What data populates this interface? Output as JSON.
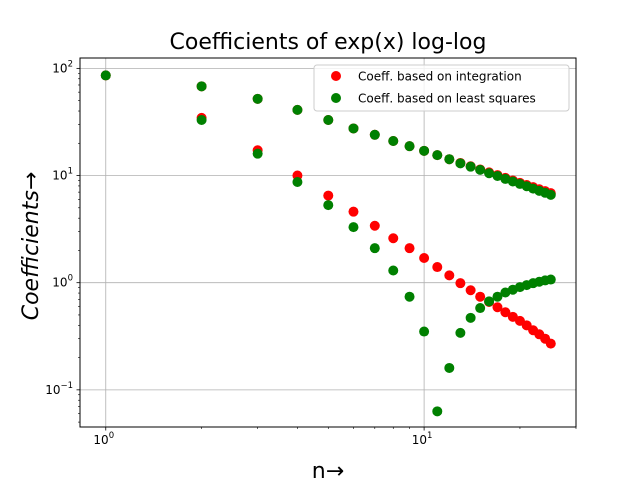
{
  "chart_data": {
    "type": "scatter",
    "title": "Coefficients of exp(x) log-log",
    "xlabel": "n→",
    "ylabel": "Coefficients→",
    "xscale": "log",
    "yscale": "log",
    "xlim": [
      0.83,
      30
    ],
    "ylim": [
      0.045,
      125
    ],
    "grid": true,
    "legend_position": "top-right",
    "x_ticks": [
      {
        "value": 1,
        "base": "10",
        "exp": "0"
      },
      {
        "value": 10,
        "base": "10",
        "exp": "1"
      }
    ],
    "y_ticks": [
      {
        "value": 0.1,
        "base": "10",
        "exp": "−1"
      },
      {
        "value": 1,
        "base": "10",
        "exp": "0"
      },
      {
        "value": 10,
        "base": "10",
        "exp": "1"
      },
      {
        "value": 100,
        "base": "10",
        "exp": "2"
      }
    ],
    "series": [
      {
        "name": "Coeff. based on integration",
        "color": "#ff0000",
        "points": [
          [
            1,
            86
          ],
          [
            2,
            34.5
          ],
          [
            3,
            17.2
          ],
          [
            4,
            10.0
          ],
          [
            5,
            6.5
          ],
          [
            6,
            4.6
          ],
          [
            7,
            3.4
          ],
          [
            8,
            2.6
          ],
          [
            9,
            2.1
          ],
          [
            10,
            1.7
          ],
          [
            11,
            1.4
          ],
          [
            12,
            1.17
          ],
          [
            13,
            0.99
          ],
          [
            14,
            0.85
          ],
          [
            15,
            0.74
          ],
          [
            16,
            0.66
          ],
          [
            17,
            0.59
          ],
          [
            18,
            0.53
          ],
          [
            19,
            0.48
          ],
          [
            20,
            0.44
          ],
          [
            21,
            0.4
          ],
          [
            22,
            0.36
          ],
          [
            23,
            0.33
          ],
          [
            24,
            0.3
          ],
          [
            25,
            0.27
          ],
          [
            2,
            68
          ],
          [
            3,
            52
          ],
          [
            4,
            41
          ],
          [
            5,
            33
          ],
          [
            6,
            27.5
          ],
          [
            7,
            24
          ],
          [
            8,
            21
          ],
          [
            9,
            18.8
          ],
          [
            10,
            17.0
          ],
          [
            11,
            15.5
          ],
          [
            12,
            14.2
          ],
          [
            13,
            13.1
          ],
          [
            14,
            12.2
          ],
          [
            15,
            11.4
          ],
          [
            16,
            10.7
          ],
          [
            17,
            10.1
          ],
          [
            18,
            9.5
          ],
          [
            19,
            9.0
          ],
          [
            20,
            8.55
          ],
          [
            21,
            8.15
          ],
          [
            22,
            7.8
          ],
          [
            23,
            7.45
          ],
          [
            24,
            7.15
          ],
          [
            25,
            6.85
          ]
        ]
      },
      {
        "name": "Coeff. based on least squares",
        "color": "#008000",
        "points": [
          [
            1,
            86
          ],
          [
            2,
            33
          ],
          [
            3,
            16
          ],
          [
            4,
            8.7
          ],
          [
            5,
            5.3
          ],
          [
            6,
            3.3
          ],
          [
            7,
            2.1
          ],
          [
            8,
            1.3
          ],
          [
            9,
            0.74
          ],
          [
            10,
            0.35
          ],
          [
            11,
            0.063
          ],
          [
            12,
            0.16
          ],
          [
            13,
            0.34
          ],
          [
            14,
            0.47
          ],
          [
            15,
            0.58
          ],
          [
            16,
            0.67
          ],
          [
            17,
            0.74
          ],
          [
            18,
            0.81
          ],
          [
            19,
            0.86
          ],
          [
            20,
            0.91
          ],
          [
            21,
            0.95
          ],
          [
            22,
            0.99
          ],
          [
            23,
            1.02
          ],
          [
            24,
            1.05
          ],
          [
            25,
            1.07
          ],
          [
            2,
            68
          ],
          [
            3,
            52
          ],
          [
            4,
            41
          ],
          [
            5,
            33
          ],
          [
            6,
            27.5
          ],
          [
            7,
            24
          ],
          [
            8,
            21
          ],
          [
            9,
            18.8
          ],
          [
            10,
            17.0
          ],
          [
            11,
            15.5
          ],
          [
            12,
            14.2
          ],
          [
            13,
            13.0
          ],
          [
            14,
            12.1
          ],
          [
            15,
            11.3
          ],
          [
            16,
            10.5
          ],
          [
            17,
            9.9
          ],
          [
            18,
            9.3
          ],
          [
            19,
            8.8
          ],
          [
            20,
            8.35
          ],
          [
            21,
            7.95
          ],
          [
            22,
            7.55
          ],
          [
            23,
            7.2
          ],
          [
            24,
            6.9
          ],
          [
            25,
            6.6
          ]
        ]
      }
    ]
  }
}
